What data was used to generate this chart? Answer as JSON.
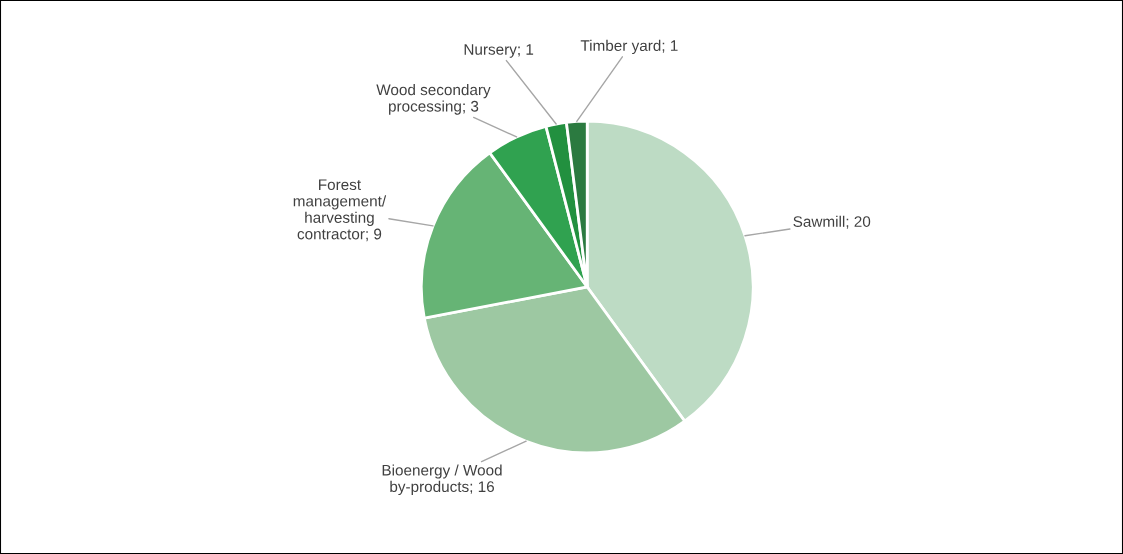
{
  "chart_data": {
    "type": "pie",
    "categories": [
      "Sawmill; 20",
      "Bioenergy / Wood\nby-products; 16",
      "Forest\nmanagement/\nharvesting\ncontractor; 9",
      "Wood secondary\nprocessing; 3",
      "Nursery; 1",
      "Timber yard; 1"
    ],
    "values": [
      40,
      32,
      18,
      6,
      2,
      2
    ],
    "colors": [
      "#bddbc4",
      "#9dc8a2",
      "#66b475",
      "#30a250",
      "#22903f",
      "#2b7a40"
    ]
  }
}
